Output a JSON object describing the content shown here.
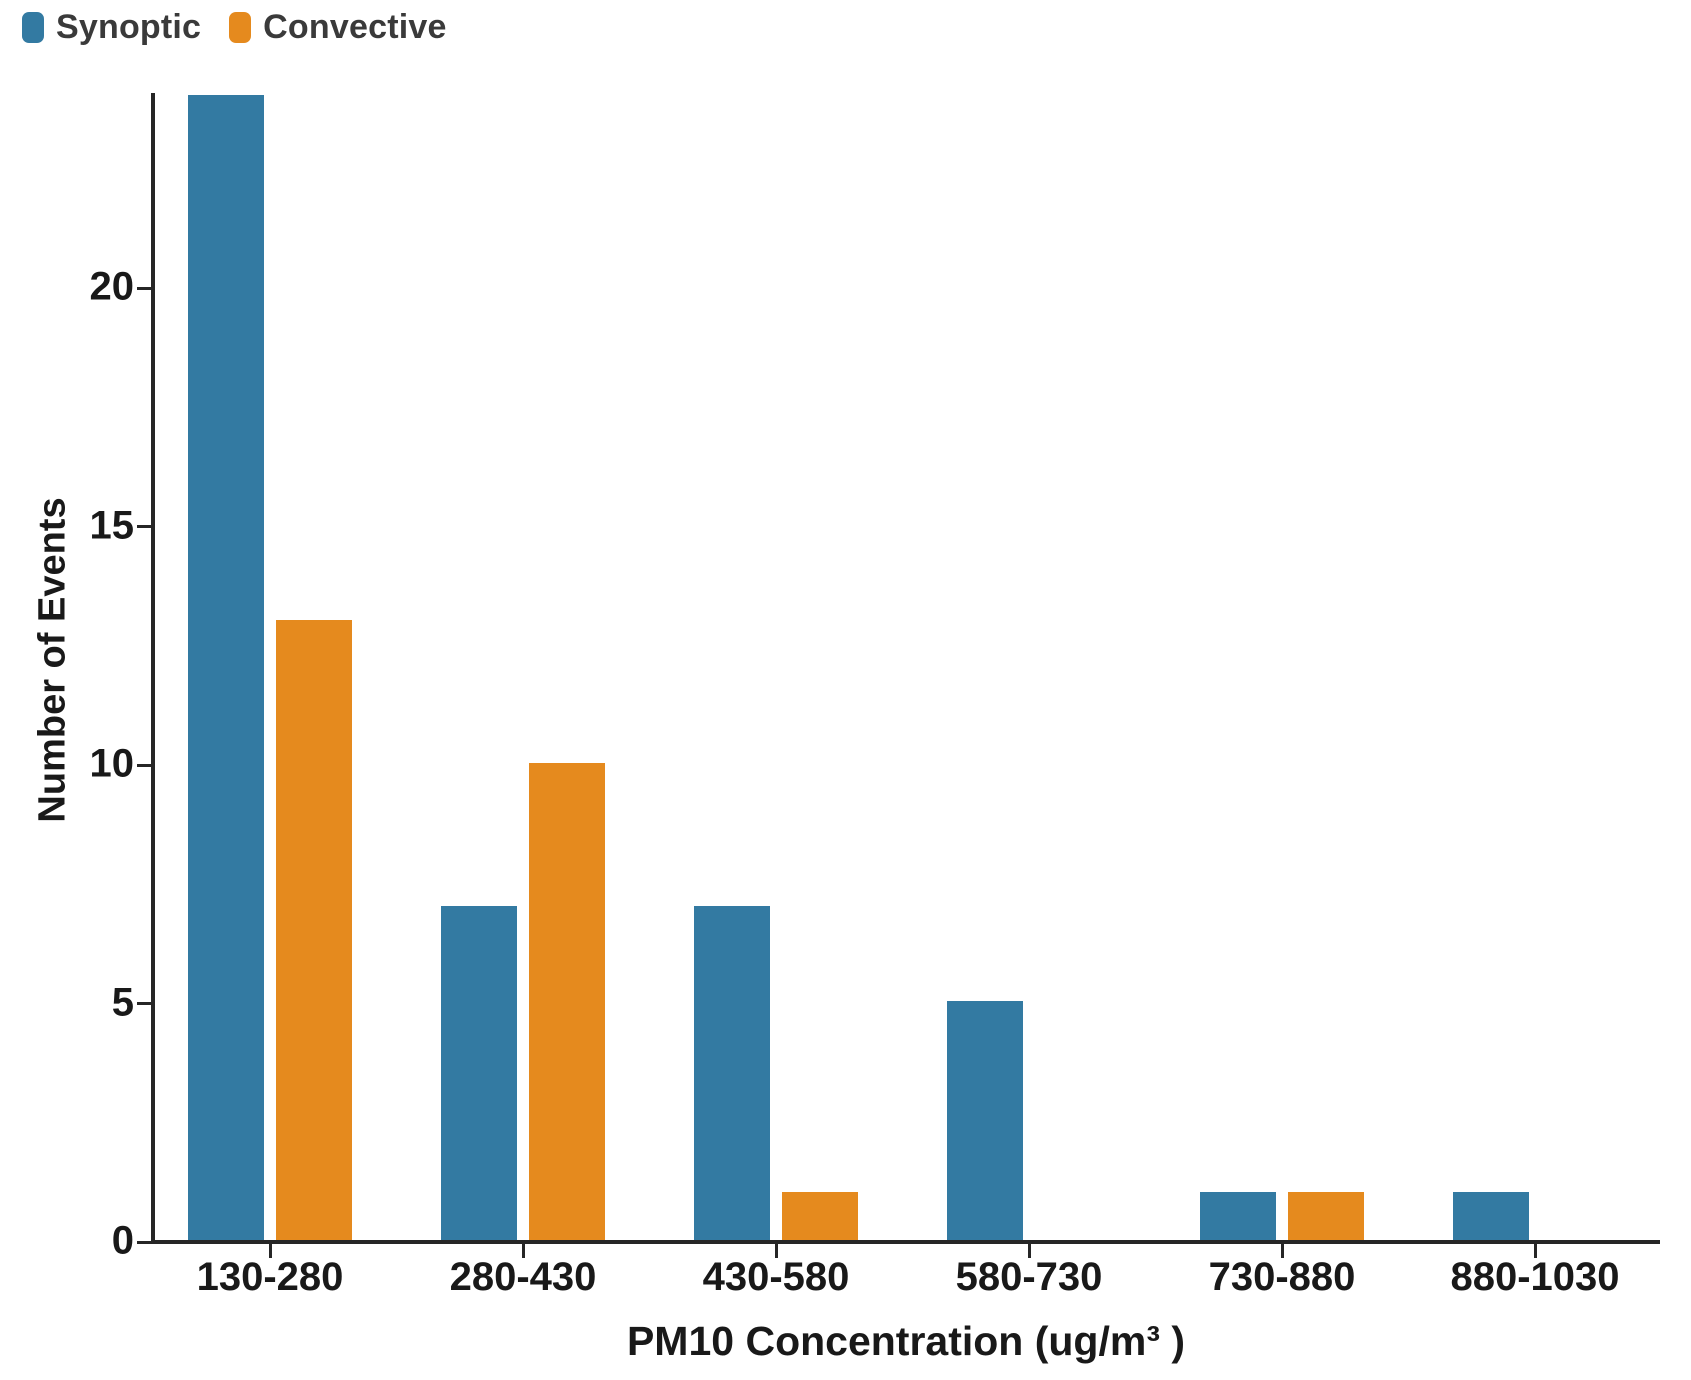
{
  "legend": [
    {
      "label": "Synoptic",
      "color": "#337aa2"
    },
    {
      "label": "Convective",
      "color": "#e58a1e"
    }
  ],
  "chart_data": {
    "type": "bar",
    "categories": [
      "130-280",
      "280-430",
      "430-580",
      "580-730",
      "730-880",
      "880-1030"
    ],
    "series": [
      {
        "name": "Synoptic",
        "color": "#337aa2",
        "values": [
          24,
          7,
          7,
          5,
          1,
          1
        ]
      },
      {
        "name": "Convective",
        "color": "#e58a1e",
        "values": [
          13,
          10,
          1,
          0,
          1,
          0
        ]
      }
    ],
    "title": "",
    "xlabel": "PM10 Concentration (ug/m³ )",
    "ylabel": "Number of Events",
    "yticks": [
      0,
      5,
      10,
      15,
      20
    ],
    "ylim": [
      0,
      24
    ],
    "grid": false,
    "legend_position": "top-left",
    "axis_color": "#262626",
    "text_color": "#191919"
  }
}
